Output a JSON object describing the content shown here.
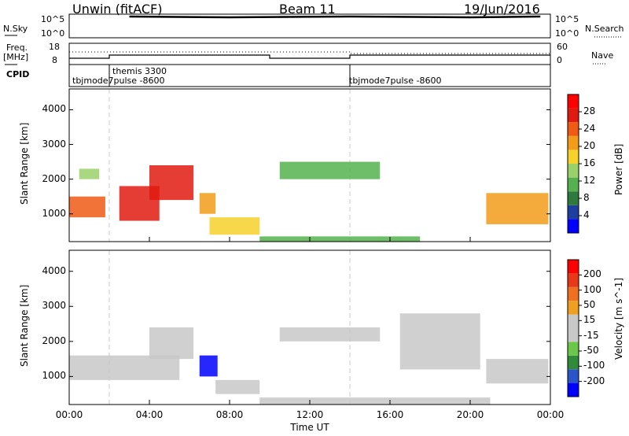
{
  "header": {
    "station_label": "Unwin (fitACF)",
    "beam_label": "Beam 11",
    "date_label": "19/Jun/2016"
  },
  "strip": {
    "nsky_label": "N.Sky",
    "nsky_ticks": [
      "10^5",
      "10^0"
    ],
    "nsearch_label": "N.Search",
    "nsearch_ticks": [
      "10^5",
      "10^0"
    ],
    "freq_label_line1": "Freq.",
    "freq_label_line2": "[MHz]",
    "freq_ticks": [
      "18",
      "8"
    ],
    "nave_label": "Nave",
    "nave_ticks": [
      "60",
      "0"
    ],
    "cpid_label": "CPID",
    "cpid_segments": [
      {
        "name": "tbjmode7pulse -8600"
      },
      {
        "name": "themis 3300"
      },
      {
        "name": "tbjmode7pulse -8600"
      }
    ]
  },
  "colors": {
    "power_scale": [
      "#0000ff",
      "#1e3fa0",
      "#2d7a3c",
      "#55b14f",
      "#9ad16a",
      "#f5d12a",
      "#f39c1a",
      "#f05a14",
      "#e01a10",
      "#ff0000"
    ],
    "velocity_scale": [
      "#0000ff",
      "#2a55c8",
      "#2f8a3a",
      "#6cc64a",
      "#c8c8c8",
      "#c8c8c8",
      "#f0a020",
      "#f07020",
      "#e83818",
      "#ff0000"
    ],
    "background": "#ffffff",
    "guide_line": "#cccccc"
  },
  "chart_data": [
    {
      "type": "heatmap",
      "title": "",
      "ylabel": "Slant Range [km]",
      "ylim": [
        200,
        4600
      ],
      "yticks": [
        "1000",
        "2000",
        "3000",
        "4000"
      ],
      "colorbar_label": "Power [dB]",
      "colorbar_ticks": [
        "4",
        "8",
        "12",
        "16",
        "20",
        "24",
        "28"
      ],
      "colorbar_range": [
        0,
        32
      ],
      "echo_regions": [
        {
          "t_start": 0.0,
          "t_end": 1.8,
          "range_min": 900,
          "range_max": 1500,
          "value": 24
        },
        {
          "t_start": 0.5,
          "t_end": 1.5,
          "range_min": 2000,
          "range_max": 2300,
          "value": 14
        },
        {
          "t_start": 2.5,
          "t_end": 4.5,
          "range_min": 800,
          "range_max": 1800,
          "value": 26
        },
        {
          "t_start": 4.0,
          "t_end": 6.2,
          "range_min": 1400,
          "range_max": 2400,
          "value": 28
        },
        {
          "t_start": 6.5,
          "t_end": 7.3,
          "range_min": 1000,
          "range_max": 1600,
          "value": 22
        },
        {
          "t_start": 7.0,
          "t_end": 9.5,
          "range_min": 400,
          "range_max": 900,
          "value": 18
        },
        {
          "t_start": 10.5,
          "t_end": 15.5,
          "range_min": 2000,
          "range_max": 2500,
          "value": 10
        },
        {
          "t_start": 9.5,
          "t_end": 17.5,
          "range_min": 200,
          "range_max": 350,
          "value": 12
        },
        {
          "t_start": 20.8,
          "t_end": 23.9,
          "range_min": 700,
          "range_max": 1600,
          "value": 22
        }
      ]
    },
    {
      "type": "heatmap",
      "title": "",
      "ylabel": "Slant Range [km]",
      "ylim": [
        200,
        4600
      ],
      "yticks": [
        "1000",
        "2000",
        "3000",
        "4000"
      ],
      "xlabel": "Time UT",
      "xticks": [
        "00:00",
        "04:00",
        "08:00",
        "12:00",
        "16:00",
        "20:00",
        "00:00"
      ],
      "colorbar_label": "Velocity [m s^-1]",
      "colorbar_ticks": [
        "200",
        "100",
        "50",
        "15",
        "-15",
        "-50",
        "-100",
        "-200"
      ],
      "colorbar_range": [
        -250,
        250
      ],
      "echo_regions": [
        {
          "t_start": 0.0,
          "t_end": 5.5,
          "range_min": 900,
          "range_max": 1600,
          "value": 0
        },
        {
          "t_start": 4.0,
          "t_end": 6.2,
          "range_min": 1500,
          "range_max": 2400,
          "value": -20
        },
        {
          "t_start": 6.5,
          "t_end": 7.4,
          "range_min": 1000,
          "range_max": 1600,
          "value": -220
        },
        {
          "t_start": 7.3,
          "t_end": 9.5,
          "range_min": 500,
          "range_max": 900,
          "value": 0
        },
        {
          "t_start": 10.5,
          "t_end": 15.5,
          "range_min": 2000,
          "range_max": 2400,
          "value": 0
        },
        {
          "t_start": 9.5,
          "t_end": 21.0,
          "range_min": 200,
          "range_max": 400,
          "value": -40
        },
        {
          "t_start": 16.5,
          "t_end": 20.5,
          "range_min": 1200,
          "range_max": 2800,
          "value": 10
        },
        {
          "t_start": 20.8,
          "t_end": 23.9,
          "range_min": 800,
          "range_max": 1500,
          "value": 40
        }
      ]
    }
  ]
}
